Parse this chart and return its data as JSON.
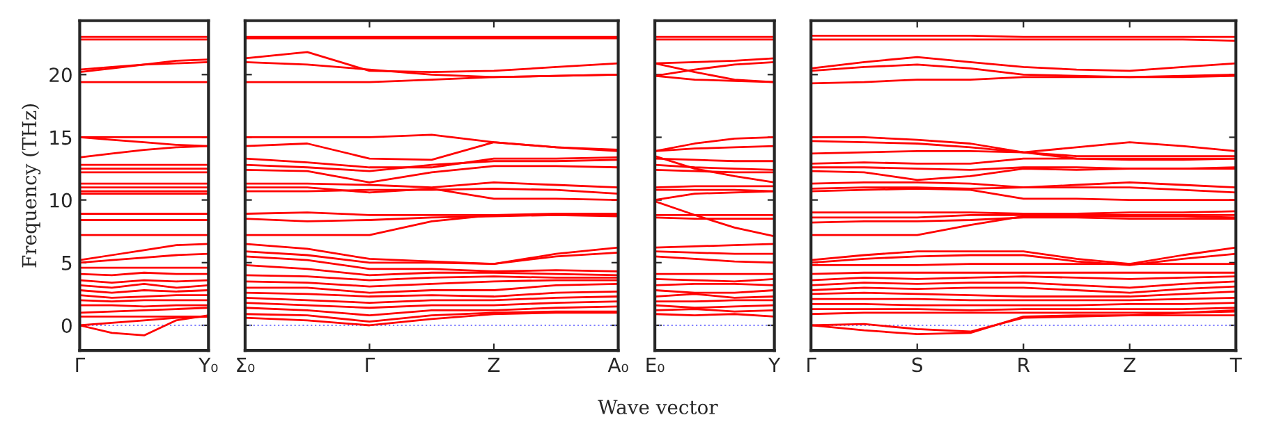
{
  "chart_data": [
    {
      "type": "line",
      "ylabel": "Frequency (THz)",
      "categories": [
        "Γ",
        null,
        null,
        null,
        "Y₀"
      ],
      "ylim": [
        -2,
        24.3
      ],
      "yticks": [
        0,
        5,
        10,
        15,
        20
      ],
      "grid": false,
      "legend": false,
      "line_style": "solid",
      "marker": "none",
      "ref_lines": [
        {
          "axis": "y",
          "value": 0,
          "color": "#8080ff",
          "line_style": "dotted"
        }
      ],
      "series": [
        {
          "color": "#ff0000",
          "values": [
            23.0,
            23.0,
            23.0,
            23.0,
            23.0
          ]
        },
        {
          "color": "#ff0000",
          "values": [
            22.8,
            22.8,
            22.8,
            22.8,
            22.8
          ]
        },
        {
          "color": "#ff0000",
          "values": [
            20.2,
            20.5,
            20.8,
            21.1,
            21.2
          ]
        },
        {
          "color": "#ff0000",
          "values": [
            20.4,
            20.6,
            20.8,
            20.9,
            21.0
          ]
        },
        {
          "color": "#ff0000",
          "values": [
            19.4,
            19.4,
            19.4,
            19.4,
            19.4
          ]
        },
        {
          "color": "#ff0000",
          "values": [
            15.0,
            15.0,
            15.0,
            15.0,
            15.0
          ]
        },
        {
          "color": "#ff0000",
          "values": [
            15.0,
            14.8,
            14.6,
            14.4,
            14.3
          ]
        },
        {
          "color": "#ff0000",
          "values": [
            13.4,
            13.7,
            14.0,
            14.2,
            14.3
          ]
        },
        {
          "color": "#ff0000",
          "values": [
            12.8,
            12.8,
            12.8,
            12.8,
            12.8
          ]
        },
        {
          "color": "#ff0000",
          "values": [
            12.5,
            12.5,
            12.5,
            12.5,
            12.5
          ]
        },
        {
          "color": "#ff0000",
          "values": [
            12.2,
            12.2,
            12.2,
            12.2,
            12.2
          ]
        },
        {
          "color": "#ff0000",
          "values": [
            11.3,
            11.3,
            11.3,
            11.3,
            11.3
          ]
        },
        {
          "color": "#ff0000",
          "values": [
            11.0,
            11.0,
            11.0,
            11.0,
            11.0
          ]
        },
        {
          "color": "#ff0000",
          "values": [
            10.7,
            10.7,
            10.7,
            10.7,
            10.7
          ]
        },
        {
          "color": "#ff0000",
          "values": [
            10.5,
            10.5,
            10.5,
            10.5,
            10.5
          ]
        },
        {
          "color": "#ff0000",
          "values": [
            8.9,
            8.9,
            8.9,
            8.9,
            8.9
          ]
        },
        {
          "color": "#ff0000",
          "values": [
            8.4,
            8.4,
            8.4,
            8.4,
            8.4
          ]
        },
        {
          "color": "#ff0000",
          "values": [
            7.2,
            7.2,
            7.2,
            7.2,
            7.2
          ]
        },
        {
          "color": "#ff0000",
          "values": [
            5.2,
            5.6,
            6.0,
            6.4,
            6.5
          ]
        },
        {
          "color": "#ff0000",
          "values": [
            5.0,
            5.2,
            5.4,
            5.6,
            5.7
          ]
        },
        {
          "color": "#ff0000",
          "values": [
            4.6,
            4.6,
            4.6,
            4.6,
            4.6
          ]
        },
        {
          "color": "#ff0000",
          "values": [
            4.1,
            4.0,
            4.2,
            4.1,
            4.1
          ]
        },
        {
          "color": "#ff0000",
          "values": [
            3.6,
            3.4,
            3.6,
            3.5,
            3.6
          ]
        },
        {
          "color": "#ff0000",
          "values": [
            3.2,
            3.0,
            3.3,
            3.0,
            3.2
          ]
        },
        {
          "color": "#ff0000",
          "values": [
            2.8,
            2.6,
            2.8,
            2.7,
            2.8
          ]
        },
        {
          "color": "#ff0000",
          "values": [
            2.4,
            2.2,
            2.3,
            2.4,
            2.4
          ]
        },
        {
          "color": "#ff0000",
          "values": [
            2.0,
            1.9,
            2.0,
            2.0,
            2.0
          ]
        },
        {
          "color": "#ff0000",
          "values": [
            1.6,
            1.6,
            1.5,
            1.6,
            1.6
          ]
        },
        {
          "color": "#ff0000",
          "values": [
            1.0,
            1.1,
            1.2,
            1.3,
            1.4
          ]
        },
        {
          "color": "#ff0000",
          "values": [
            0.7,
            0.7,
            0.7,
            0.7,
            0.7
          ]
        },
        {
          "color": "#ff0000",
          "values": [
            0.0,
            0.2,
            0.4,
            0.6,
            0.7
          ]
        },
        {
          "color": "#ff0000",
          "values": [
            0.0,
            -0.6,
            -0.8,
            0.4,
            0.8
          ]
        }
      ]
    },
    {
      "type": "line",
      "xlabel": "Wave vector",
      "categories": [
        "Σ₀",
        null,
        "Γ",
        null,
        "Z",
        null,
        "A₀"
      ],
      "ylim": [
        -2,
        24.3
      ],
      "yticks": [
        0,
        5,
        10,
        15,
        20
      ],
      "tick_labels": "x",
      "grid": false,
      "legend": false,
      "line_style": "solid",
      "marker": "none",
      "ref_lines": [
        {
          "axis": "y",
          "value": 0,
          "color": "#8080ff",
          "line_style": "dotted"
        }
      ],
      "series": [
        {
          "color": "#ff0000",
          "values": [
            23.0,
            23.0,
            23.0,
            23.0,
            23.0,
            23.0,
            23.0
          ]
        },
        {
          "color": "#ff0000",
          "values": [
            22.9,
            22.9,
            22.9,
            22.9,
            22.9,
            22.9,
            22.9
          ]
        },
        {
          "color": "#ff0000",
          "values": [
            21.3,
            21.8,
            20.3,
            20.2,
            20.3,
            20.6,
            20.9
          ]
        },
        {
          "color": "#ff0000",
          "values": [
            21.0,
            20.8,
            20.4,
            20.0,
            19.8,
            19.9,
            20.0
          ]
        },
        {
          "color": "#ff0000",
          "values": [
            19.4,
            19.4,
            19.4,
            19.6,
            19.8,
            19.9,
            20.0
          ]
        },
        {
          "color": "#ff0000",
          "values": [
            15.0,
            15.0,
            15.0,
            15.2,
            14.6,
            14.2,
            13.9
          ]
        },
        {
          "color": "#ff0000",
          "values": [
            14.3,
            14.5,
            13.3,
            13.2,
            14.6,
            14.2,
            14.0
          ]
        },
        {
          "color": "#ff0000",
          "values": [
            13.3,
            13.0,
            12.6,
            12.6,
            13.3,
            13.3,
            13.4
          ]
        },
        {
          "color": "#ff0000",
          "values": [
            12.8,
            12.6,
            12.3,
            12.8,
            13.1,
            13.1,
            13.2
          ]
        },
        {
          "color": "#ff0000",
          "values": [
            12.4,
            12.3,
            11.4,
            12.2,
            12.7,
            12.7,
            12.6
          ]
        },
        {
          "color": "#ff0000",
          "values": [
            11.3,
            11.3,
            11.2,
            11.0,
            11.4,
            11.2,
            11.0
          ]
        },
        {
          "color": "#ff0000",
          "values": [
            11.0,
            11.0,
            10.6,
            10.9,
            10.1,
            10.1,
            10.0
          ]
        },
        {
          "color": "#ff0000",
          "values": [
            10.7,
            10.7,
            10.8,
            10.8,
            10.9,
            10.8,
            10.5
          ]
        },
        {
          "color": "#ff0000",
          "values": [
            8.9,
            9.0,
            8.8,
            8.8,
            8.8,
            8.9,
            8.9
          ]
        },
        {
          "color": "#ff0000",
          "values": [
            8.5,
            8.3,
            8.4,
            8.6,
            8.7,
            8.8,
            8.8
          ]
        },
        {
          "color": "#ff0000",
          "values": [
            7.2,
            7.2,
            7.2,
            8.3,
            8.8,
            8.8,
            8.7
          ]
        },
        {
          "color": "#ff0000",
          "values": [
            6.5,
            6.1,
            5.3,
            5.1,
            4.9,
            5.7,
            6.2
          ]
        },
        {
          "color": "#ff0000",
          "values": [
            5.9,
            5.6,
            5.0,
            5.0,
            4.9,
            5.5,
            5.8
          ]
        },
        {
          "color": "#ff0000",
          "values": [
            5.5,
            5.2,
            4.5,
            4.5,
            4.3,
            4.4,
            4.3
          ]
        },
        {
          "color": "#ff0000",
          "values": [
            4.8,
            4.5,
            4.0,
            4.2,
            4.2,
            4.1,
            4.0
          ]
        },
        {
          "color": "#ff0000",
          "values": [
            4.0,
            3.9,
            3.6,
            3.8,
            3.9,
            3.8,
            3.8
          ]
        },
        {
          "color": "#ff0000",
          "values": [
            3.5,
            3.4,
            3.1,
            3.3,
            3.5,
            3.6,
            3.6
          ]
        },
        {
          "color": "#ff0000",
          "values": [
            3.0,
            3.0,
            2.6,
            2.8,
            2.8,
            3.2,
            3.3
          ]
        },
        {
          "color": "#ff0000",
          "values": [
            2.6,
            2.5,
            2.3,
            2.4,
            2.3,
            2.6,
            2.7
          ]
        },
        {
          "color": "#ff0000",
          "values": [
            2.2,
            2.0,
            1.8,
            2.0,
            2.0,
            2.2,
            2.3
          ]
        },
        {
          "color": "#ff0000",
          "values": [
            1.8,
            1.6,
            1.4,
            1.6,
            1.6,
            1.8,
            1.9
          ]
        },
        {
          "color": "#ff0000",
          "values": [
            1.4,
            1.2,
            0.8,
            1.2,
            1.2,
            1.4,
            1.5
          ]
        },
        {
          "color": "#ff0000",
          "values": [
            0.9,
            0.8,
            0.3,
            0.8,
            1.0,
            1.1,
            1.1
          ]
        },
        {
          "color": "#ff0000",
          "values": [
            0.6,
            0.4,
            0.0,
            0.5,
            0.9,
            1.0,
            1.0
          ]
        }
      ]
    },
    {
      "type": "line",
      "categories": [
        "E₀",
        null,
        null,
        "Y"
      ],
      "ylim": [
        -2,
        24.3
      ],
      "yticks": [
        0,
        5,
        10,
        15,
        20
      ],
      "tick_labels": "x",
      "grid": false,
      "legend": false,
      "line_style": "solid",
      "marker": "none",
      "ref_lines": [
        {
          "axis": "y",
          "value": 0,
          "color": "#8080ff",
          "line_style": "dotted"
        }
      ],
      "series": [
        {
          "color": "#ff0000",
          "values": [
            23.0,
            23.0,
            23.0,
            23.0
          ]
        },
        {
          "color": "#ff0000",
          "values": [
            22.8,
            22.8,
            22.8,
            22.8
          ]
        },
        {
          "color": "#ff0000",
          "values": [
            20.9,
            21.0,
            21.1,
            21.3
          ]
        },
        {
          "color": "#ff0000",
          "values": [
            19.9,
            20.4,
            20.8,
            21.0
          ]
        },
        {
          "color": "#ff0000",
          "values": [
            20.9,
            20.2,
            19.6,
            19.4
          ]
        },
        {
          "color": "#ff0000",
          "values": [
            19.9,
            19.6,
            19.5,
            19.4
          ]
        },
        {
          "color": "#ff0000",
          "values": [
            13.9,
            14.5,
            14.9,
            15.0
          ]
        },
        {
          "color": "#ff0000",
          "values": [
            13.9,
            14.1,
            14.2,
            14.3
          ]
        },
        {
          "color": "#ff0000",
          "values": [
            13.3,
            13.2,
            13.1,
            13.1
          ]
        },
        {
          "color": "#ff0000",
          "values": [
            12.8,
            12.6,
            12.5,
            12.4
          ]
        },
        {
          "color": "#ff0000",
          "values": [
            13.5,
            12.5,
            11.9,
            11.4
          ]
        },
        {
          "color": "#ff0000",
          "values": [
            12.4,
            12.3,
            12.2,
            12.2
          ]
        },
        {
          "color": "#ff0000",
          "values": [
            11.0,
            11.1,
            11.1,
            11.1
          ]
        },
        {
          "color": "#ff0000",
          "values": [
            10.8,
            10.8,
            10.8,
            10.7
          ]
        },
        {
          "color": "#ff0000",
          "values": [
            9.9,
            8.8,
            7.8,
            7.1
          ]
        },
        {
          "color": "#ff0000",
          "values": [
            10.0,
            10.5,
            10.6,
            10.7
          ]
        },
        {
          "color": "#ff0000",
          "values": [
            8.8,
            8.8,
            8.8,
            8.8
          ]
        },
        {
          "color": "#ff0000",
          "values": [
            8.6,
            8.5,
            8.5,
            8.5
          ]
        },
        {
          "color": "#ff0000",
          "values": [
            6.2,
            6.3,
            6.4,
            6.5
          ]
        },
        {
          "color": "#ff0000",
          "values": [
            5.9,
            5.8,
            5.7,
            5.7
          ]
        },
        {
          "color": "#ff0000",
          "values": [
            5.5,
            5.3,
            5.1,
            5.0
          ]
        },
        {
          "color": "#ff0000",
          "values": [
            4.1,
            4.1,
            4.1,
            4.1
          ]
        },
        {
          "color": "#ff0000",
          "values": [
            3.7,
            3.6,
            3.5,
            3.7
          ]
        },
        {
          "color": "#ff0000",
          "values": [
            3.2,
            3.3,
            3.3,
            3.2
          ]
        },
        {
          "color": "#ff0000",
          "values": [
            2.8,
            2.6,
            2.6,
            2.8
          ]
        },
        {
          "color": "#ff0000",
          "values": [
            2.3,
            2.5,
            2.2,
            2.3
          ]
        },
        {
          "color": "#ff0000",
          "values": [
            1.9,
            1.9,
            2.0,
            2.0
          ]
        },
        {
          "color": "#ff0000",
          "values": [
            1.6,
            1.4,
            1.5,
            1.6
          ]
        },
        {
          "color": "#ff0000",
          "values": [
            1.2,
            1.3,
            1.1,
            1.2
          ]
        },
        {
          "color": "#ff0000",
          "values": [
            0.9,
            0.8,
            0.9,
            0.7
          ]
        }
      ]
    },
    {
      "type": "line",
      "categories": [
        "Γ",
        null,
        "S",
        null,
        "R",
        null,
        "Z",
        null,
        "T"
      ],
      "ylim": [
        -2,
        24.3
      ],
      "yticks": [
        0,
        5,
        10,
        15,
        20
      ],
      "tick_labels": "x",
      "grid": false,
      "legend": false,
      "line_style": "solid",
      "marker": "none",
      "ref_lines": [
        {
          "axis": "y",
          "value": 0,
          "color": "#8080ff",
          "line_style": "dotted"
        }
      ],
      "series": [
        {
          "color": "#ff0000",
          "values": [
            23.1,
            23.1,
            23.1,
            23.1,
            23.0,
            23.0,
            23.0,
            23.0,
            23.0
          ]
        },
        {
          "color": "#ff0000",
          "values": [
            22.8,
            22.8,
            22.8,
            22.8,
            22.8,
            22.8,
            22.8,
            22.8,
            22.7
          ]
        },
        {
          "color": "#ff0000",
          "values": [
            20.5,
            21.0,
            21.4,
            21.0,
            20.6,
            20.4,
            20.3,
            20.6,
            20.9
          ]
        },
        {
          "color": "#ff0000",
          "values": [
            20.3,
            20.6,
            20.8,
            20.5,
            20.0,
            19.9,
            19.8,
            19.8,
            19.9
          ]
        },
        {
          "color": "#ff0000",
          "values": [
            19.3,
            19.4,
            19.6,
            19.6,
            19.8,
            19.8,
            19.8,
            19.9,
            20.0
          ]
        },
        {
          "color": "#ff0000",
          "values": [
            15.0,
            15.0,
            14.8,
            14.5,
            13.8,
            14.2,
            14.6,
            14.3,
            13.9
          ]
        },
        {
          "color": "#ff0000",
          "values": [
            14.7,
            14.6,
            14.5,
            14.2,
            13.8,
            13.5,
            13.5,
            13.5,
            13.5
          ]
        },
        {
          "color": "#ff0000",
          "values": [
            13.7,
            13.8,
            13.9,
            13.9,
            13.8,
            13.3,
            13.2,
            13.2,
            13.3
          ]
        },
        {
          "color": "#ff0000",
          "values": [
            12.9,
            13.0,
            12.9,
            12.9,
            13.3,
            13.3,
            13.3,
            13.3,
            13.3
          ]
        },
        {
          "color": "#ff0000",
          "values": [
            12.6,
            12.6,
            12.5,
            12.4,
            12.6,
            12.6,
            12.5,
            12.5,
            12.6
          ]
        },
        {
          "color": "#ff0000",
          "values": [
            12.3,
            12.2,
            11.6,
            11.9,
            12.5,
            12.4,
            12.5,
            12.5,
            12.5
          ]
        },
        {
          "color": "#ff0000",
          "values": [
            11.3,
            11.4,
            11.4,
            11.3,
            11.0,
            11.2,
            11.4,
            11.2,
            11.0
          ]
        },
        {
          "color": "#ff0000",
          "values": [
            10.9,
            11.0,
            11.0,
            10.9,
            11.0,
            11.0,
            11.0,
            10.8,
            10.6
          ]
        },
        {
          "color": "#ff0000",
          "values": [
            10.7,
            10.8,
            10.9,
            10.8,
            10.1,
            10.1,
            10.0,
            10.0,
            10.0
          ]
        },
        {
          "color": "#ff0000",
          "values": [
            9.0,
            9.0,
            9.0,
            9.0,
            8.9,
            8.9,
            9.0,
            9.0,
            9.1
          ]
        },
        {
          "color": "#ff0000",
          "values": [
            8.6,
            8.6,
            8.6,
            8.8,
            8.8,
            8.8,
            8.8,
            8.8,
            8.8
          ]
        },
        {
          "color": "#ff0000",
          "values": [
            8.2,
            8.3,
            8.3,
            8.4,
            8.6,
            8.6,
            8.5,
            8.5,
            8.5
          ]
        },
        {
          "color": "#ff0000",
          "values": [
            7.2,
            7.2,
            7.2,
            8.0,
            8.7,
            8.7,
            8.7,
            8.7,
            8.6
          ]
        },
        {
          "color": "#ff0000",
          "values": [
            5.2,
            5.6,
            5.9,
            5.9,
            5.9,
            5.3,
            4.9,
            5.6,
            6.2
          ]
        },
        {
          "color": "#ff0000",
          "values": [
            5.0,
            5.3,
            5.5,
            5.6,
            5.6,
            5.1,
            4.8,
            5.3,
            5.7
          ]
        },
        {
          "color": "#ff0000",
          "values": [
            4.8,
            4.8,
            4.8,
            4.9,
            4.9,
            4.9,
            4.9,
            4.9,
            4.9
          ]
        },
        {
          "color": "#ff0000",
          "values": [
            4.1,
            4.2,
            4.2,
            4.2,
            4.2,
            4.2,
            4.2,
            4.2,
            4.2
          ]
        },
        {
          "color": "#ff0000",
          "values": [
            3.6,
            3.8,
            3.7,
            3.8,
            3.9,
            3.8,
            3.7,
            3.8,
            3.9
          ]
        },
        {
          "color": "#ff0000",
          "values": [
            3.2,
            3.4,
            3.3,
            3.4,
            3.4,
            3.2,
            3.0,
            3.3,
            3.5
          ]
        },
        {
          "color": "#ff0000",
          "values": [
            2.8,
            3.0,
            2.9,
            3.0,
            3.0,
            2.8,
            2.6,
            2.9,
            3.1
          ]
        },
        {
          "color": "#ff0000",
          "values": [
            2.5,
            2.6,
            2.5,
            2.4,
            2.3,
            2.3,
            2.3,
            2.5,
            2.7
          ]
        },
        {
          "color": "#ff0000",
          "values": [
            2.1,
            2.1,
            2.1,
            2.0,
            2.0,
            2.0,
            2.0,
            2.1,
            2.2
          ]
        },
        {
          "color": "#ff0000",
          "values": [
            1.7,
            1.7,
            1.6,
            1.6,
            1.6,
            1.6,
            1.7,
            1.7,
            1.8
          ]
        },
        {
          "color": "#ff0000",
          "values": [
            1.3,
            1.3,
            1.3,
            1.2,
            1.3,
            1.3,
            1.3,
            1.3,
            1.4
          ]
        },
        {
          "color": "#ff0000",
          "values": [
            0.9,
            1.0,
            1.0,
            1.0,
            1.0,
            1.0,
            1.0,
            1.0,
            1.1
          ]
        },
        {
          "color": "#ff0000",
          "values": [
            0.0,
            -0.4,
            -0.7,
            -0.6,
            0.7,
            0.8,
            0.8,
            0.8,
            0.8
          ]
        },
        {
          "color": "#ff0000",
          "values": [
            0.0,
            0.1,
            -0.3,
            -0.5,
            0.6,
            0.7,
            0.8,
            1.0,
            1.2
          ]
        }
      ]
    }
  ]
}
